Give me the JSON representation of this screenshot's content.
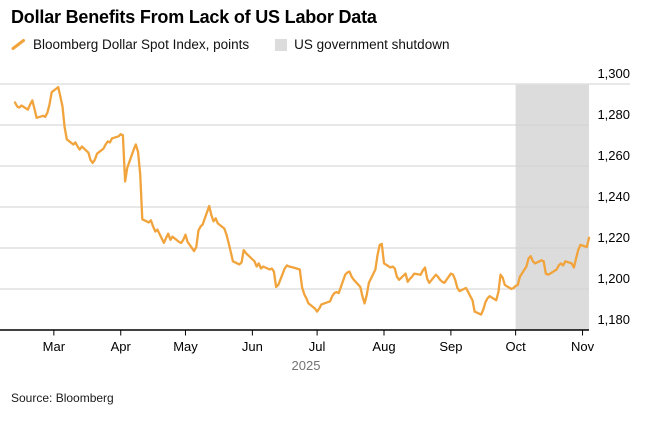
{
  "title": "Dollar Benefits From Lack of US Labor Data",
  "legend": {
    "series_label": "Bloomberg Dollar Spot Index, points",
    "band_label": "US government shutdown"
  },
  "source": "Source: Bloomberg",
  "colors": {
    "line": "#F1A33C",
    "band": "#DCDCDC",
    "grid": "#D2D2D2",
    "axis": "#000000",
    "text": "#000000",
    "muted_text": "#737373"
  },
  "chart_data": {
    "type": "line",
    "title": "Dollar Benefits From Lack of US Labor Data",
    "grid": true,
    "legend_position": "top",
    "ylim": [
      1180,
      1300
    ],
    "y_ticks": [
      1180,
      1200,
      1220,
      1240,
      1260,
      1280,
      1300
    ],
    "x_range": [
      "2025-02-11",
      "2025-11-04"
    ],
    "x_ticks": [
      {
        "date": "2025-03-01",
        "label": "Mar"
      },
      {
        "date": "2025-04-01",
        "label": "Apr"
      },
      {
        "date": "2025-05-01",
        "label": "May"
      },
      {
        "date": "2025-06-01",
        "label": "Jun"
      },
      {
        "date": "2025-07-01",
        "label": "Jul"
      },
      {
        "date": "2025-08-01",
        "label": "Aug"
      },
      {
        "date": "2025-09-01",
        "label": "Sep"
      },
      {
        "date": "2025-10-01",
        "label": "Oct"
      },
      {
        "date": "2025-11-01",
        "label": "Nov"
      }
    ],
    "year_label": "2025",
    "band": {
      "label": "US government shutdown",
      "start": "2025-10-01",
      "end": "2025-11-04",
      "color": "#DCDCDC"
    },
    "series": [
      {
        "name": "Bloomberg Dollar Spot Index, points",
        "color": "#F1A33C",
        "points": [
          [
            "2025-02-11",
            1291
          ],
          [
            "2025-02-12",
            1289
          ],
          [
            "2025-02-13",
            1288.5
          ],
          [
            "2025-02-14",
            1289.5
          ],
          [
            "2025-02-17",
            1287.5
          ],
          [
            "2025-02-18",
            1290
          ],
          [
            "2025-02-19",
            1292
          ],
          [
            "2025-02-20",
            1288
          ],
          [
            "2025-02-21",
            1283.5
          ],
          [
            "2025-02-24",
            1284.5
          ],
          [
            "2025-02-25",
            1284
          ],
          [
            "2025-02-26",
            1286
          ],
          [
            "2025-02-27",
            1290
          ],
          [
            "2025-02-28",
            1296
          ],
          [
            "2025-03-03",
            1298.5
          ],
          [
            "2025-03-04",
            1294
          ],
          [
            "2025-03-05",
            1289
          ],
          [
            "2025-03-06",
            1279
          ],
          [
            "2025-03-07",
            1273
          ],
          [
            "2025-03-10",
            1270.5
          ],
          [
            "2025-03-11",
            1271.5
          ],
          [
            "2025-03-12",
            1269.5
          ],
          [
            "2025-03-13",
            1268
          ],
          [
            "2025-03-14",
            1269.5
          ],
          [
            "2025-03-17",
            1266.5
          ],
          [
            "2025-03-18",
            1263
          ],
          [
            "2025-03-19",
            1261.5
          ],
          [
            "2025-03-20",
            1263
          ],
          [
            "2025-03-21",
            1266
          ],
          [
            "2025-03-24",
            1268.5
          ],
          [
            "2025-03-25",
            1270.5
          ],
          [
            "2025-03-26",
            1272
          ],
          [
            "2025-03-27",
            1271.5
          ],
          [
            "2025-03-28",
            1273.5
          ],
          [
            "2025-03-31",
            1274.5
          ],
          [
            "2025-04-01",
            1275.5
          ],
          [
            "2025-04-02",
            1275
          ],
          [
            "2025-04-03",
            1252.5
          ],
          [
            "2025-04-04",
            1259
          ],
          [
            "2025-04-07",
            1268
          ],
          [
            "2025-04-08",
            1270.5
          ],
          [
            "2025-04-09",
            1267
          ],
          [
            "2025-04-10",
            1256
          ],
          [
            "2025-04-11",
            1234
          ],
          [
            "2025-04-14",
            1232.5
          ],
          [
            "2025-04-15",
            1233.5
          ],
          [
            "2025-04-16",
            1230.5
          ],
          [
            "2025-04-17",
            1228
          ],
          [
            "2025-04-18",
            1229
          ],
          [
            "2025-04-21",
            1222.5
          ],
          [
            "2025-04-22",
            1225
          ],
          [
            "2025-04-23",
            1227
          ],
          [
            "2025-04-24",
            1224
          ],
          [
            "2025-04-25",
            1225.5
          ],
          [
            "2025-04-28",
            1223
          ],
          [
            "2025-04-29",
            1222.5
          ],
          [
            "2025-04-30",
            1224
          ],
          [
            "2025-05-01",
            1226.5
          ],
          [
            "2025-05-02",
            1223
          ],
          [
            "2025-05-05",
            1218.5
          ],
          [
            "2025-05-06",
            1220.5
          ],
          [
            "2025-05-07",
            1228.5
          ],
          [
            "2025-05-08",
            1230.5
          ],
          [
            "2025-05-09",
            1231.5
          ],
          [
            "2025-05-12",
            1240.5
          ],
          [
            "2025-05-13",
            1236
          ],
          [
            "2025-05-14",
            1233
          ],
          [
            "2025-05-15",
            1234.5
          ],
          [
            "2025-05-16",
            1232
          ],
          [
            "2025-05-19",
            1229.5
          ],
          [
            "2025-05-20",
            1226.5
          ],
          [
            "2025-05-21",
            1222.5
          ],
          [
            "2025-05-22",
            1218
          ],
          [
            "2025-05-23",
            1213.5
          ],
          [
            "2025-05-26",
            1212
          ],
          [
            "2025-05-27",
            1213
          ],
          [
            "2025-05-28",
            1219
          ],
          [
            "2025-05-29",
            1217.5
          ],
          [
            "2025-05-30",
            1216.5
          ],
          [
            "2025-06-02",
            1213.5
          ],
          [
            "2025-06-03",
            1211
          ],
          [
            "2025-06-04",
            1212.5
          ],
          [
            "2025-06-05",
            1210
          ],
          [
            "2025-06-06",
            1211
          ],
          [
            "2025-06-09",
            1209.5
          ],
          [
            "2025-06-10",
            1210
          ],
          [
            "2025-06-11",
            1208.5
          ],
          [
            "2025-06-12",
            1201
          ],
          [
            "2025-06-13",
            1202
          ],
          [
            "2025-06-16",
            1210
          ],
          [
            "2025-06-17",
            1211.5
          ],
          [
            "2025-06-18",
            1211
          ],
          [
            "2025-06-20",
            1210.5
          ],
          [
            "2025-06-23",
            1209.5
          ],
          [
            "2025-06-24",
            1201
          ],
          [
            "2025-06-25",
            1197.5
          ],
          [
            "2025-06-26",
            1195.5
          ],
          [
            "2025-06-27",
            1193
          ],
          [
            "2025-06-30",
            1190.5
          ],
          [
            "2025-07-01",
            1189
          ],
          [
            "2025-07-02",
            1190.5
          ],
          [
            "2025-07-03",
            1192.5
          ],
          [
            "2025-07-07",
            1194
          ],
          [
            "2025-07-08",
            1196.5
          ],
          [
            "2025-07-09",
            1198
          ],
          [
            "2025-07-10",
            1198.5
          ],
          [
            "2025-07-11",
            1198
          ],
          [
            "2025-07-14",
            1207
          ],
          [
            "2025-07-15",
            1208
          ],
          [
            "2025-07-16",
            1208.5
          ],
          [
            "2025-07-17",
            1206
          ],
          [
            "2025-07-18",
            1204.5
          ],
          [
            "2025-07-21",
            1201
          ],
          [
            "2025-07-22",
            1196.5
          ],
          [
            "2025-07-23",
            1193
          ],
          [
            "2025-07-24",
            1197
          ],
          [
            "2025-07-25",
            1203
          ],
          [
            "2025-07-28",
            1209.5
          ],
          [
            "2025-07-29",
            1216.5
          ],
          [
            "2025-07-30",
            1221.5
          ],
          [
            "2025-07-31",
            1222
          ],
          [
            "2025-08-01",
            1212.5
          ],
          [
            "2025-08-04",
            1210.5
          ],
          [
            "2025-08-05",
            1211
          ],
          [
            "2025-08-06",
            1210
          ],
          [
            "2025-08-07",
            1206
          ],
          [
            "2025-08-08",
            1204.5
          ],
          [
            "2025-08-11",
            1207.5
          ],
          [
            "2025-08-12",
            1203.5
          ],
          [
            "2025-08-13",
            1205
          ],
          [
            "2025-08-14",
            1206
          ],
          [
            "2025-08-15",
            1207.5
          ],
          [
            "2025-08-18",
            1207
          ],
          [
            "2025-08-19",
            1209
          ],
          [
            "2025-08-20",
            1210.5
          ],
          [
            "2025-08-21",
            1205
          ],
          [
            "2025-08-22",
            1203
          ],
          [
            "2025-08-25",
            1207
          ],
          [
            "2025-08-26",
            1206
          ],
          [
            "2025-08-27",
            1204.5
          ],
          [
            "2025-08-28",
            1203.5
          ],
          [
            "2025-08-29",
            1203
          ],
          [
            "2025-09-01",
            1207.5
          ],
          [
            "2025-09-02",
            1207
          ],
          [
            "2025-09-03",
            1204.5
          ],
          [
            "2025-09-04",
            1200.5
          ],
          [
            "2025-09-05",
            1199
          ],
          [
            "2025-09-08",
            1200.5
          ],
          [
            "2025-09-09",
            1198.5
          ],
          [
            "2025-09-10",
            1196.5
          ],
          [
            "2025-09-11",
            1194.5
          ],
          [
            "2025-09-12",
            1189
          ],
          [
            "2025-09-15",
            1187.5
          ],
          [
            "2025-09-16",
            1190
          ],
          [
            "2025-09-17",
            1193.5
          ],
          [
            "2025-09-18",
            1195.5
          ],
          [
            "2025-09-19",
            1196.5
          ],
          [
            "2025-09-22",
            1194.5
          ],
          [
            "2025-09-23",
            1198.5
          ],
          [
            "2025-09-24",
            1207
          ],
          [
            "2025-09-25",
            1205.5
          ],
          [
            "2025-09-26",
            1202
          ],
          [
            "2025-09-29",
            1200
          ],
          [
            "2025-09-30",
            1200.5
          ],
          [
            "2025-10-01",
            1201.5
          ],
          [
            "2025-10-02",
            1202
          ],
          [
            "2025-10-03",
            1206
          ],
          [
            "2025-10-06",
            1211
          ],
          [
            "2025-10-07",
            1215
          ],
          [
            "2025-10-08",
            1216
          ],
          [
            "2025-10-09",
            1213.5
          ],
          [
            "2025-10-10",
            1212.5
          ],
          [
            "2025-10-13",
            1214
          ],
          [
            "2025-10-14",
            1213.5
          ],
          [
            "2025-10-15",
            1207.5
          ],
          [
            "2025-10-16",
            1207
          ],
          [
            "2025-10-17",
            1207.5
          ],
          [
            "2025-10-20",
            1209.5
          ],
          [
            "2025-10-21",
            1211.5
          ],
          [
            "2025-10-22",
            1212.5
          ],
          [
            "2025-10-23",
            1211.5
          ],
          [
            "2025-10-24",
            1213.5
          ],
          [
            "2025-10-27",
            1212.5
          ],
          [
            "2025-10-28",
            1210.5
          ],
          [
            "2025-10-29",
            1215
          ],
          [
            "2025-10-30",
            1219
          ],
          [
            "2025-10-31",
            1221.5
          ],
          [
            "2025-11-03",
            1220.5
          ],
          [
            "2025-11-04",
            1225
          ]
        ]
      }
    ]
  }
}
